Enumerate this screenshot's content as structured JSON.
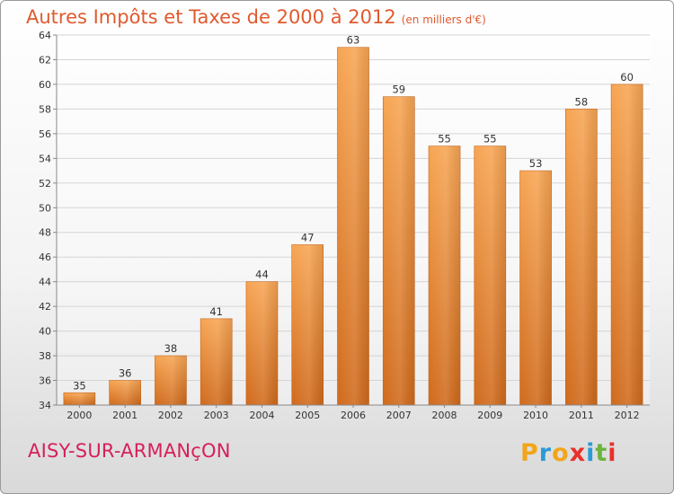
{
  "title": "Autres Impôts et Taxes de 2000 à 2012",
  "subtitle": "(en milliers d'€)",
  "commune": "AISY-SUR-ARMANçON",
  "logo": {
    "letters": [
      "P",
      "r",
      "o",
      "x",
      "i",
      "t",
      "i"
    ],
    "colors": [
      "#f2a51a",
      "#2a9bd6",
      "#f2a51a",
      "#e8312a",
      "#2a9bd6",
      "#6db33f",
      "#e8312a"
    ]
  },
  "colors": {
    "bar": "#f0913a",
    "bar_dark": "#d46e1e",
    "title": "#e05a2e",
    "commune": "#d6205a"
  },
  "chart_data": {
    "type": "bar",
    "title": "Autres Impôts et Taxes de 2000 à 2012",
    "subtitle": "(en milliers d'€)",
    "categories": [
      "2000",
      "2001",
      "2002",
      "2003",
      "2004",
      "2005",
      "2006",
      "2007",
      "2008",
      "2009",
      "2010",
      "2011",
      "2012"
    ],
    "values": [
      35,
      36,
      38,
      41,
      44,
      47,
      63,
      59,
      55,
      55,
      53,
      58,
      60
    ],
    "ylim": [
      34,
      64
    ],
    "yticks": [
      34,
      36,
      38,
      40,
      42,
      44,
      46,
      48,
      50,
      52,
      54,
      56,
      58,
      60,
      62,
      64
    ],
    "grid": true,
    "xlabel": "",
    "ylabel": ""
  }
}
